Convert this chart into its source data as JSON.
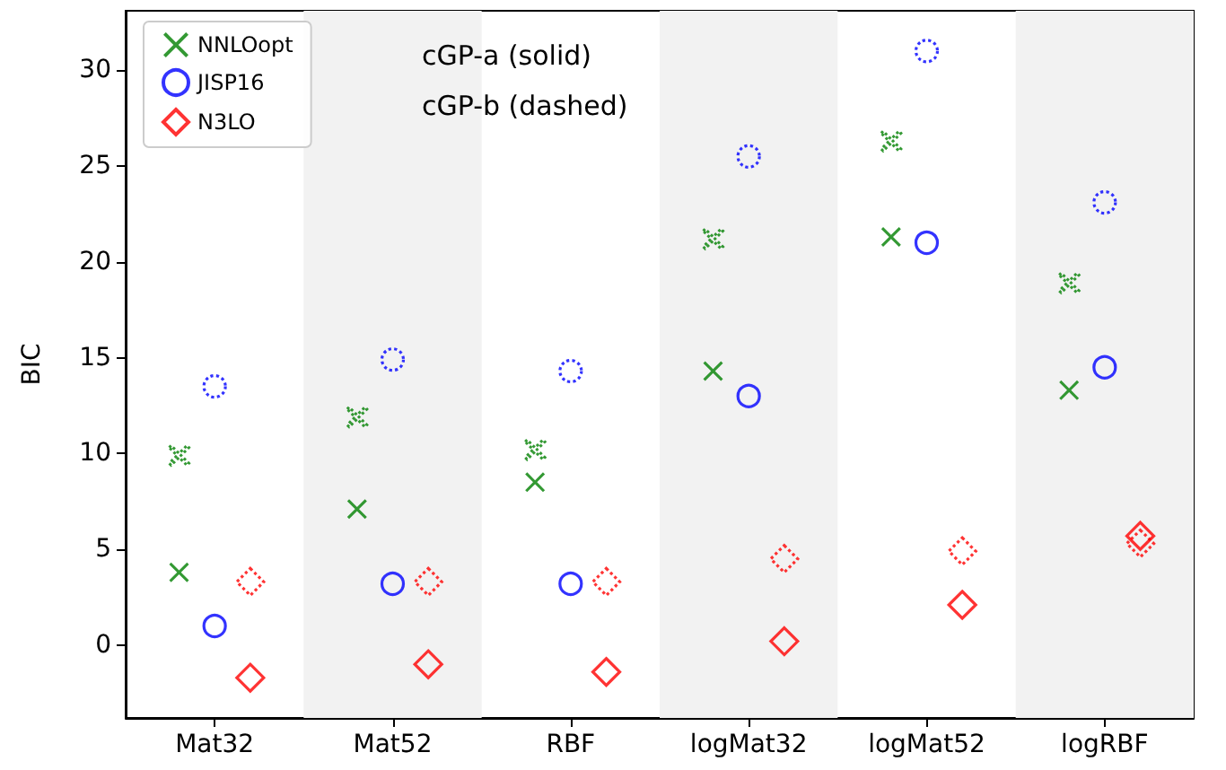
{
  "chart_data": {
    "type": "scatter",
    "ylabel": "BIC",
    "categories": [
      "Mat32",
      "Mat52",
      "RBF",
      "logMat32",
      "logMat52",
      "logRBF"
    ],
    "series": [
      {
        "name": "NNLOopt",
        "color": "#008000",
        "marker": "cross",
        "line_style": "solid",
        "values": [
          3.8,
          7.1,
          8.5,
          14.3,
          21.3,
          13.3
        ]
      },
      {
        "name": "JISP16",
        "color": "#0000ff",
        "marker": "circle",
        "line_style": "solid",
        "values": [
          1.0,
          3.2,
          3.2,
          13.0,
          21.0,
          14.5
        ]
      },
      {
        "name": "N3LO",
        "color": "#ff0000",
        "marker": "diamond",
        "line_style": "solid",
        "values": [
          -1.7,
          -1.0,
          -1.4,
          0.2,
          2.1,
          5.7
        ]
      },
      {
        "color": "#008000",
        "marker": "cross",
        "line_style": "dotted",
        "values": [
          9.9,
          11.9,
          10.2,
          21.2,
          26.3,
          18.9
        ]
      },
      {
        "color": "#0000ff",
        "marker": "circle",
        "line_style": "dotted",
        "values": [
          13.5,
          14.9,
          14.3,
          25.5,
          31.0,
          23.1
        ]
      },
      {
        "color": "#ff0000",
        "marker": "diamond",
        "line_style": "dotted",
        "values": [
          3.3,
          3.3,
          3.3,
          4.5,
          4.9,
          5.3
        ]
      }
    ],
    "annotations": [
      "cGP-a (solid)",
      "cGP-b (dashed)"
    ],
    "ylim": [
      -3.8,
      33.1
    ],
    "yticks": [
      0,
      5,
      10,
      15,
      20,
      25,
      30
    ],
    "bands": [
      {
        "axis": "x",
        "from": "Mat52",
        "to": "Mat52",
        "color": "#f2f2f2"
      },
      {
        "axis": "x",
        "from": "logMat32",
        "to": "logMat32",
        "color": "#f2f2f2"
      },
      {
        "axis": "x",
        "from": "logRBF",
        "to": "logRBF",
        "color": "#f2f2f2"
      }
    ],
    "grid": false,
    "legend": "top left"
  }
}
